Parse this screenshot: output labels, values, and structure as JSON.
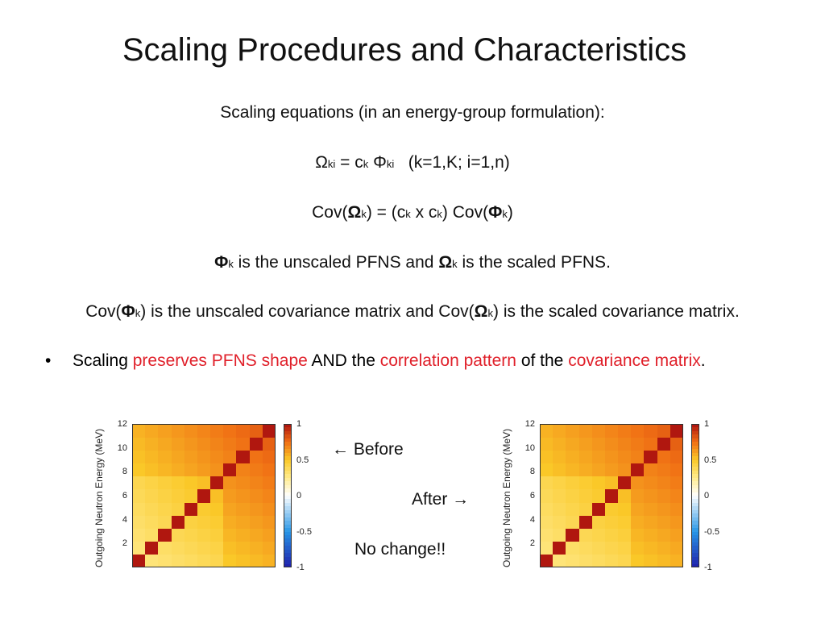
{
  "slide": {
    "title": "Scaling Procedures and Characteristics",
    "intro": "Scaling  equations (in an energy-group formulation):",
    "eq1": {
      "omega": "Ω",
      "ki1": "ki",
      "eq": " = c",
      "k1": "k",
      "phi": " Φ",
      "ki2": "ki",
      "range": "   (k=1,K; i=1,n)"
    },
    "eq2": {
      "p1": "Cov(",
      "omega": "Ω",
      "k1": "k",
      "p2": ") = (c",
      "k2": "k",
      "p3": " x c",
      "k3": "k",
      "p4": ") Cov(",
      "phi": "Φ",
      "k4": "k",
      "p5": ")"
    },
    "line3": {
      "phi": "Φ",
      "k1": "k",
      "p1": " is the unscaled PFNS and ",
      "omega": "Ω",
      "k2": "k",
      "p2": " is the scaled PFNS."
    },
    "line4": {
      "p1": "Cov(",
      "phi": "Φ",
      "k1": "k",
      "p2": ") is the unscaled covariance matrix and Cov(",
      "omega": "Ω",
      "k2": "k",
      "p3": ") is the scaled covariance matrix."
    },
    "bullet": {
      "dot": "•",
      "t1": "Scaling ",
      "r1": "preserves PFNS shape",
      "t2": " AND the ",
      "r2": "correlation pattern",
      "t3": " of the ",
      "r3": "covariance matrix",
      "t4": "."
    },
    "before_label": "← Before",
    "after_label": "After →",
    "no_change": "No change!!",
    "accent_red": "#e0202a"
  },
  "chart_data": [
    {
      "type": "heatmap",
      "name": "before",
      "ylabel": "Outgoing Neutron Energy (MeV)",
      "yticks": [
        "2",
        "4",
        "6",
        "8",
        "10",
        "12"
      ],
      "colorbar_ticks": [
        "1",
        "0.5",
        "0",
        "-0.5",
        "-1"
      ],
      "zlim": [
        -1,
        1
      ],
      "grid_size": 11,
      "correlation_decay": 0.05
    },
    {
      "type": "heatmap",
      "name": "after",
      "ylabel": "Outgoing Neutron Energy (MeV)",
      "yticks": [
        "2",
        "4",
        "6",
        "8",
        "10",
        "12"
      ],
      "colorbar_ticks": [
        "1",
        "0.5",
        "0",
        "-0.5",
        "-1"
      ],
      "zlim": [
        -1,
        1
      ],
      "grid_size": 11,
      "correlation_decay": 0.05
    }
  ]
}
